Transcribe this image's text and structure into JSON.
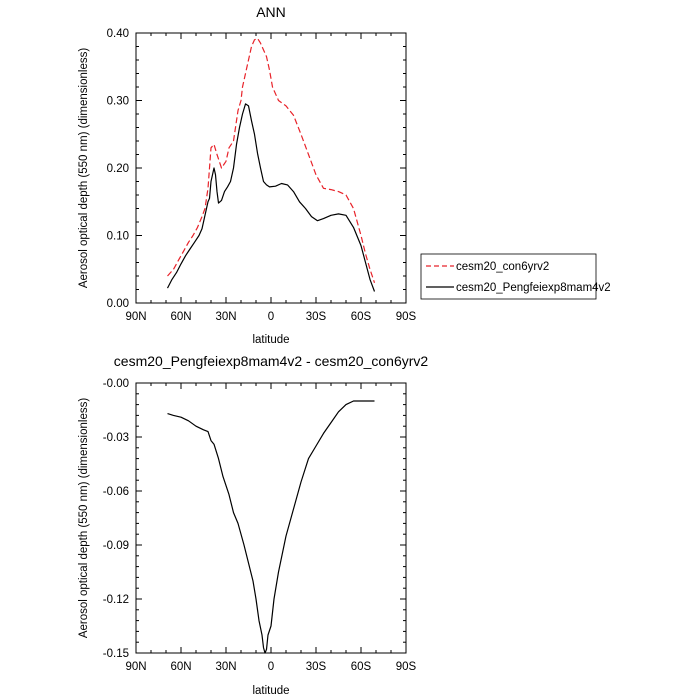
{
  "chart_data": [
    {
      "type": "line",
      "title": "ANN",
      "xlabel": "latitude",
      "ylabel": "Aerosol optical depth (550 nm) (dimensionless)",
      "xlim": [
        90,
        -90
      ],
      "ylim": [
        0,
        0.4
      ],
      "x_ticks": [
        90,
        60,
        30,
        0,
        -30,
        -60,
        -90
      ],
      "x_tick_labels": [
        "90N",
        "60N",
        "30N",
        "0",
        "30S",
        "60S",
        "90S"
      ],
      "y_ticks": [
        0,
        0.1,
        0.2,
        0.3,
        0.4
      ],
      "y_tick_labels": [
        "0.00",
        "0.10",
        "0.20",
        "0.30",
        "0.40"
      ],
      "grid": false,
      "legend_position": "right",
      "series": [
        {
          "name": "cesm20_con6yrv2",
          "color": "#e8232a",
          "dash": "dashed",
          "x": [
            69,
            65,
            62,
            58,
            55,
            52,
            49,
            46,
            44,
            42,
            41,
            40,
            38,
            36,
            33,
            30,
            28,
            25,
            22,
            20,
            19,
            17,
            15,
            13,
            11,
            9,
            7,
            5,
            3,
            1,
            -1,
            -5,
            -10,
            -15,
            -20,
            -25,
            -30,
            -35,
            -40,
            -45,
            -50,
            -55,
            -60,
            -63,
            -66,
            -69
          ],
          "values": [
            0.04,
            0.05,
            0.062,
            0.078,
            0.09,
            0.1,
            0.112,
            0.128,
            0.14,
            0.17,
            0.2,
            0.23,
            0.235,
            0.22,
            0.2,
            0.21,
            0.23,
            0.24,
            0.285,
            0.3,
            0.32,
            0.34,
            0.36,
            0.38,
            0.39,
            0.392,
            0.385,
            0.375,
            0.365,
            0.345,
            0.32,
            0.3,
            0.292,
            0.278,
            0.25,
            0.22,
            0.19,
            0.17,
            0.168,
            0.165,
            0.16,
            0.14,
            0.1,
            0.073,
            0.05,
            0.03
          ]
        },
        {
          "name": "cesm20_Pengfeiexp8mam4v2",
          "color": "#000000",
          "dash": "solid",
          "x": [
            69,
            66,
            63,
            60,
            57,
            54,
            51,
            48,
            46,
            44,
            42,
            41,
            40,
            38,
            37,
            36,
            35,
            33,
            31,
            29,
            27,
            25,
            23,
            21,
            19,
            17,
            15,
            13,
            11,
            9,
            7,
            5,
            3,
            1,
            -3,
            -7,
            -11,
            -15,
            -19,
            -23,
            -27,
            -31,
            -35,
            -40,
            -45,
            -50,
            -55,
            -60,
            -63,
            -66,
            -69
          ],
          "values": [
            0.022,
            0.035,
            0.045,
            0.058,
            0.07,
            0.08,
            0.09,
            0.1,
            0.11,
            0.13,
            0.15,
            0.155,
            0.18,
            0.2,
            0.19,
            0.165,
            0.148,
            0.152,
            0.165,
            0.172,
            0.18,
            0.2,
            0.235,
            0.26,
            0.28,
            0.295,
            0.292,
            0.27,
            0.25,
            0.222,
            0.2,
            0.18,
            0.175,
            0.172,
            0.173,
            0.177,
            0.175,
            0.165,
            0.15,
            0.14,
            0.128,
            0.122,
            0.125,
            0.13,
            0.132,
            0.13,
            0.112,
            0.085,
            0.06,
            0.035,
            0.017
          ]
        }
      ]
    },
    {
      "type": "line",
      "title": "cesm20_Pengfeiexp8mam4v2 - cesm20_con6yrv2",
      "xlabel": "latitude",
      "ylabel": "Aerosol optical depth (550 nm) (dimensionless)",
      "xlim": [
        90,
        -90
      ],
      "ylim": [
        -0.15,
        0
      ],
      "x_ticks": [
        90,
        60,
        30,
        0,
        -30,
        -60,
        -90
      ],
      "x_tick_labels": [
        "90N",
        "60N",
        "30N",
        "0",
        "30S",
        "60S",
        "90S"
      ],
      "y_ticks": [
        0,
        -0.03,
        -0.06,
        -0.09,
        -0.12,
        -0.15
      ],
      "y_tick_labels": [
        "-0.00",
        "-0.03",
        "-0.06",
        "-0.09",
        "-0.12",
        "-0.15"
      ],
      "grid": false,
      "series": [
        {
          "color": "#000000",
          "dash": "solid",
          "x": [
            69,
            65,
            60,
            55,
            50,
            45,
            42,
            40,
            38,
            35,
            32,
            28,
            25,
            22,
            18,
            15,
            12,
            10,
            8,
            6,
            5,
            4,
            3,
            2,
            0,
            -2,
            -5,
            -10,
            -15,
            -20,
            -25,
            -30,
            -35,
            -40,
            -45,
            -50,
            -55,
            -60,
            -63,
            -66,
            -69
          ],
          "values": [
            -0.017,
            -0.018,
            -0.019,
            -0.021,
            -0.024,
            -0.026,
            -0.027,
            -0.032,
            -0.034,
            -0.042,
            -0.052,
            -0.062,
            -0.072,
            -0.078,
            -0.09,
            -0.1,
            -0.11,
            -0.12,
            -0.132,
            -0.14,
            -0.147,
            -0.15,
            -0.148,
            -0.14,
            -0.135,
            -0.12,
            -0.105,
            -0.085,
            -0.07,
            -0.055,
            -0.042,
            -0.035,
            -0.028,
            -0.022,
            -0.016,
            -0.012,
            -0.01,
            -0.01,
            -0.01,
            -0.01,
            -0.01
          ]
        }
      ]
    }
  ]
}
